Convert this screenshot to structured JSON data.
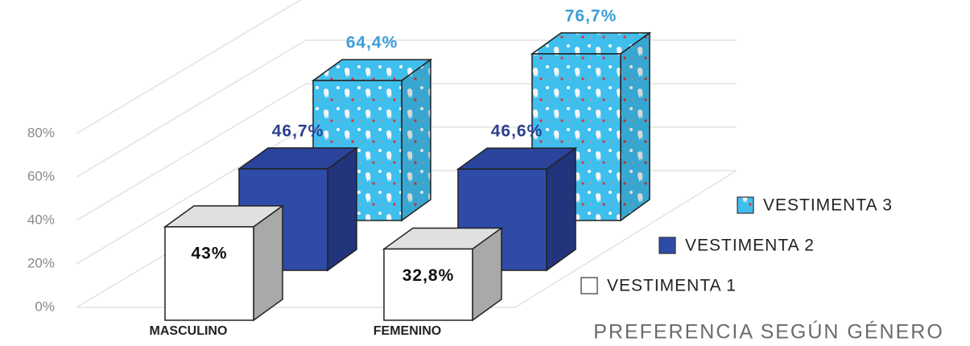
{
  "chart_data": {
    "type": "bar3d",
    "title": "PREFERENCIA SEGÚN GÉNERO",
    "categories": [
      "MASCULINO",
      "FEMENINO"
    ],
    "series": [
      {
        "name": "VESTIMENTA 1",
        "color": "#ffffff",
        "values": [
          43,
          32.8
        ],
        "value_labels": [
          "43%",
          "32,8%"
        ]
      },
      {
        "name": "VESTIMENTA 2",
        "color": "#2e4ba8",
        "values": [
          46.7,
          46.6
        ],
        "value_labels": [
          "46,7%",
          "46,6%"
        ]
      },
      {
        "name": "VESTIMENTA 3",
        "color": "#3fbfee",
        "values": [
          64.4,
          76.7
        ],
        "value_labels": [
          "64,4%",
          "76,7%"
        ]
      }
    ],
    "ylim": [
      0,
      100
    ],
    "yticks": [
      {
        "value": 0,
        "label": "0%"
      },
      {
        "value": 20,
        "label": "20%"
      },
      {
        "value": 40,
        "label": "40%"
      },
      {
        "value": 60,
        "label": "60%"
      },
      {
        "value": 80,
        "label": "80%"
      }
    ],
    "grid": true,
    "legend": "bottom-right"
  }
}
